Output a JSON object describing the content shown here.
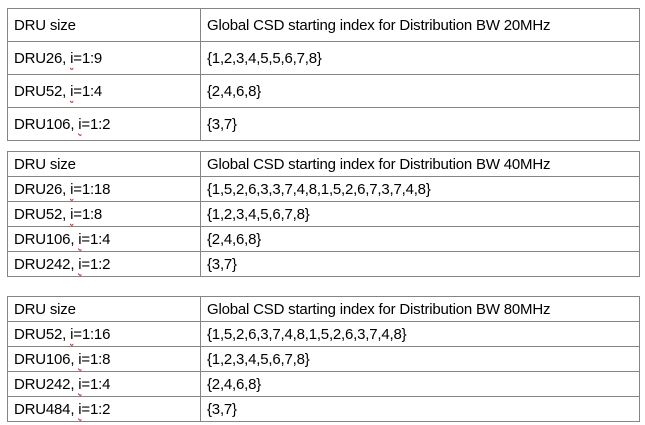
{
  "colors": {
    "background": "#ffffff",
    "table_border": "#848484",
    "text": "#000000",
    "spellcheck_underline": "#c00000"
  },
  "tables": [
    {
      "header": {
        "dru_size": "DRU size",
        "csd_index": "Global CSD starting index for Distribution BW 20MHz"
      },
      "rows": [
        {
          "size_prefix": "DRU26, ",
          "size_i": "i",
          "size_suffix": "=1:9",
          "csd": "{1,2,3,4,5,5,6,7,8}"
        },
        {
          "size_prefix": "DRU52, ",
          "size_i": "i",
          "size_suffix": "=1:4",
          "csd": "{2,4,6,8}"
        },
        {
          "size_prefix": "DRU106, ",
          "size_i": "i",
          "size_suffix": "=1:2",
          "csd": "{3,7}"
        }
      ]
    },
    {
      "header": {
        "dru_size": "DRU size",
        "csd_index": "Global CSD starting index for Distribution BW 40MHz"
      },
      "rows": [
        {
          "size_prefix": "DRU26, ",
          "size_i": "i",
          "size_suffix": "=1:18",
          "csd": "{1,5,2,6,3,3,7,4,8,1,5,2,6,7,3,7,4,8}"
        },
        {
          "size_prefix": "DRU52, ",
          "size_i": "i",
          "size_suffix": "=1:8",
          "csd": "{1,2,3,4,5,6,7,8}"
        },
        {
          "size_prefix": "DRU106, ",
          "size_i": "i",
          "size_suffix": "=1:4",
          "csd": "{2,4,6,8}"
        },
        {
          "size_prefix": "DRU242, ",
          "size_i": "i",
          "size_suffix": "=1:2",
          "csd": "{3,7}"
        }
      ]
    },
    {
      "header": {
        "dru_size": "DRU size",
        "csd_index": "Global CSD starting index for Distribution BW 80MHz"
      },
      "rows": [
        {
          "size_prefix": "DRU52, ",
          "size_i": "i",
          "size_suffix": "=1:16",
          "csd": "{1,5,2,6,3,7,4,8,1,5,2,6,3,7,4,8}"
        },
        {
          "size_prefix": "DRU106, ",
          "size_i": "i",
          "size_suffix": "=1:8",
          "csd": "{1,2,3,4,5,6,7,8}"
        },
        {
          "size_prefix": "DRU242, ",
          "size_i": "i",
          "size_suffix": "=1:4",
          "csd": "{2,4,6,8}"
        },
        {
          "size_prefix": "DRU484, ",
          "size_i": "i",
          "size_suffix": "=1:2",
          "csd": "{3,7}"
        }
      ]
    }
  ]
}
